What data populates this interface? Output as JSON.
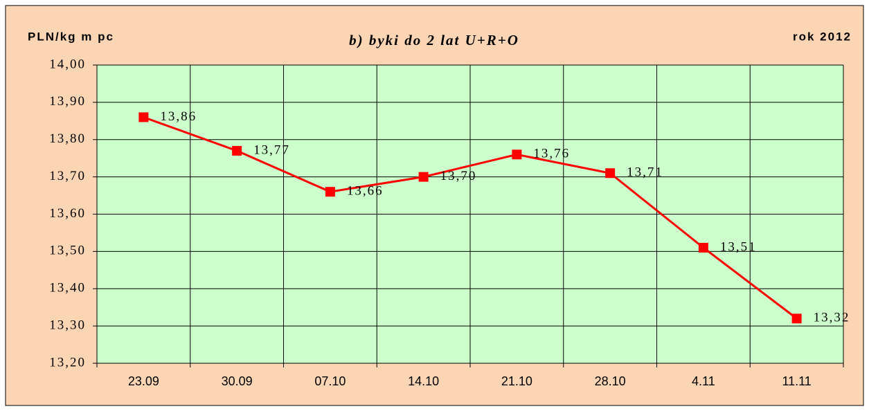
{
  "chart_data": {
    "type": "line",
    "title": "b) byki do 2 lat U+R+O",
    "y_label": "PLN/kg m pc",
    "annotation": "rok 2012",
    "categories": [
      "23.09",
      "30.09",
      "07.10",
      "14.10",
      "21.10",
      "28.10",
      "4.11",
      "11.11"
    ],
    "series": [
      {
        "name": "byki do 2 lat U+R+O",
        "color": "#ff0000",
        "values": [
          13.86,
          13.77,
          13.66,
          13.7,
          13.76,
          13.71,
          13.51,
          13.32
        ],
        "value_labels": [
          "13,86",
          "13,77",
          "13,66",
          "13,70",
          "13,76",
          "13,71",
          "13,51",
          "13,32"
        ]
      }
    ],
    "ylim": [
      13.2,
      14.0
    ],
    "yticks": [
      {
        "value": 13.2,
        "label": "13,20"
      },
      {
        "value": 13.3,
        "label": "13,30"
      },
      {
        "value": 13.4,
        "label": "13,40"
      },
      {
        "value": 13.5,
        "label": "13,50"
      },
      {
        "value": 13.6,
        "label": "13,60"
      },
      {
        "value": 13.7,
        "label": "13,70"
      },
      {
        "value": 13.8,
        "label": "13,80"
      },
      {
        "value": 13.9,
        "label": "13,90"
      },
      {
        "value": 14.0,
        "label": "14,00"
      }
    ],
    "grid": true
  }
}
